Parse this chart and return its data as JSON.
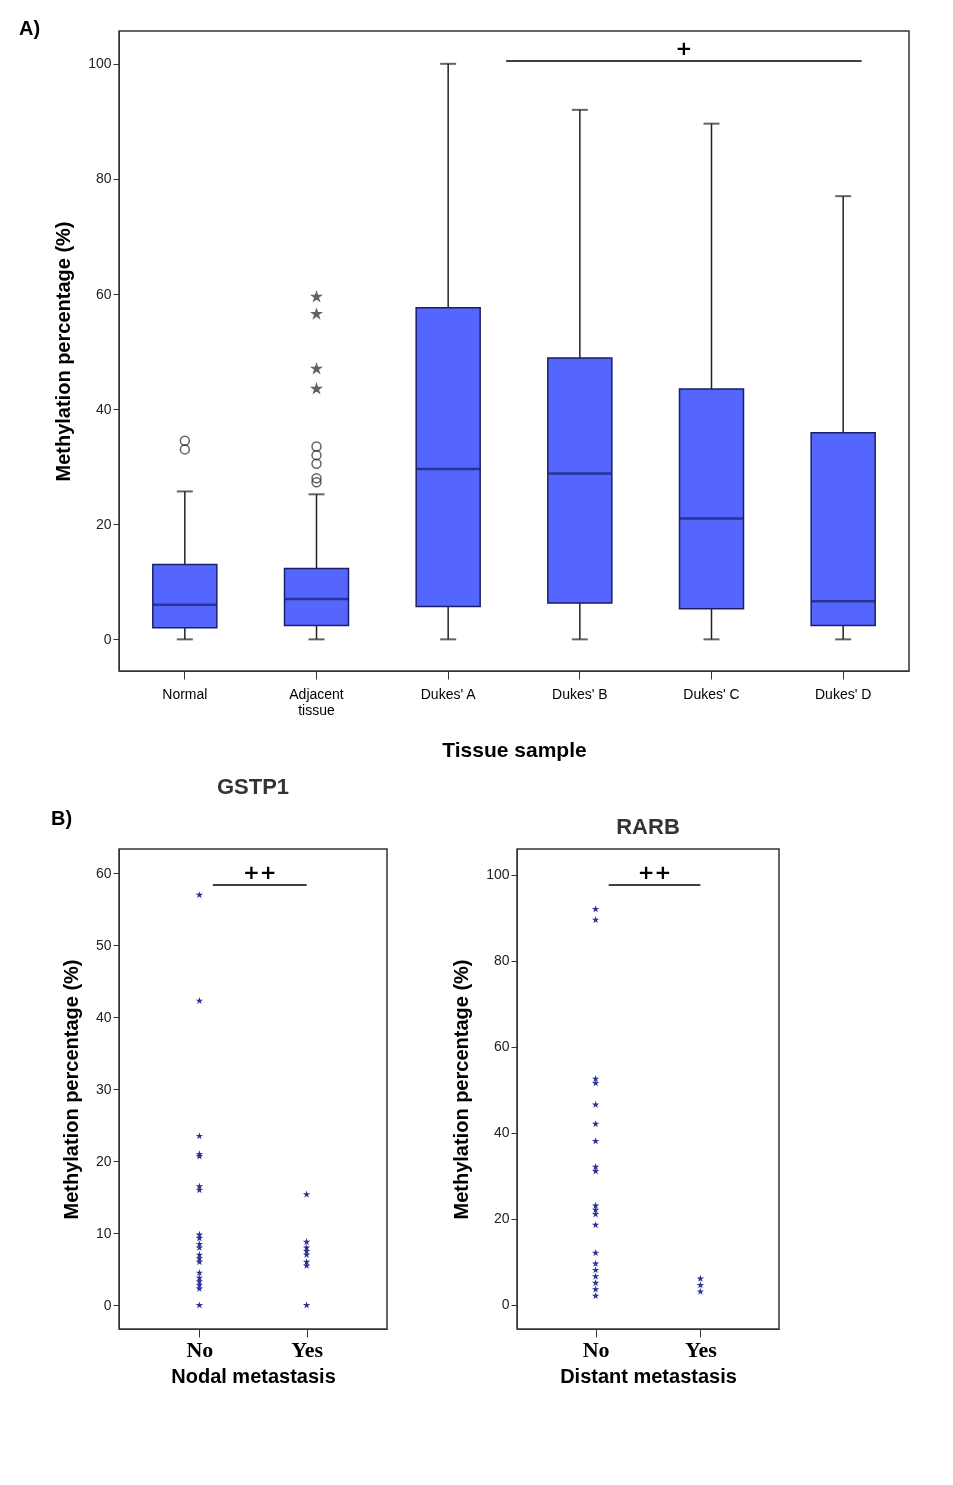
{
  "chart_data": [
    {
      "type": "box",
      "xlabel": "Tissue sample",
      "ylabel": "Methylation percentage (%)",
      "color": "#5566ff",
      "categories": [
        "Normal",
        "Adjacent tissue",
        "Dukes' A",
        "Dukes' B",
        "Dukes' C",
        "Dukes' D"
      ],
      "boxes": [
        {
          "low": 0,
          "q1": 2,
          "median": 6,
          "q3": 13,
          "high": 25.7,
          "outliers": [
            33,
            34.5
          ]
        },
        {
          "low": 0,
          "q1": 2.4,
          "median": 7,
          "q3": 12.3,
          "high": 25.2,
          "outliers": [
            27.3,
            28,
            30.5,
            32,
            33.5,
            43.5,
            47,
            56.5,
            59.5
          ]
        },
        {
          "low": 0,
          "q1": 5.7,
          "median": 29.6,
          "q3": 57.6,
          "high": 100
        },
        {
          "low": 0,
          "q1": 6.3,
          "median": 28.8,
          "q3": 48.9,
          "high": 92
        },
        {
          "low": 0,
          "q1": 5.3,
          "median": 21,
          "q3": 43.5,
          "high": 89.6
        },
        {
          "low": 0,
          "q1": 2.4,
          "median": 6.6,
          "q3": 35.9,
          "high": 77
        }
      ],
      "ylim": [
        -5.5,
        105.7
      ],
      "yticks": [
        0,
        20,
        40,
        60,
        80,
        100
      ],
      "annotations": [
        "A)",
        "+"
      ]
    },
    {
      "type": "scatter",
      "title": "GSTP1",
      "xlabel": "Nodal metastasis",
      "ylabel": "Methylation percentage (%)",
      "marker": "star",
      "categories": [
        "No",
        "Yes"
      ],
      "series": [
        {
          "color": "#2e3192",
          "x": [
            "No",
            "No",
            "No",
            "No",
            "No",
            "No",
            "No",
            "No",
            "No",
            "No",
            "No",
            "No",
            "No",
            "No",
            "No",
            "No",
            "No",
            "No",
            "No",
            "No",
            "Yes",
            "Yes",
            "Yes",
            "Yes",
            "Yes",
            "Yes",
            "Yes",
            "Yes"
          ],
          "values": [
            57,
            42.3,
            23.5,
            21,
            20.7,
            16.5,
            16,
            9.8,
            9.3,
            8.5,
            8,
            7,
            6.5,
            6,
            4.5,
            3.8,
            3.3,
            2.8,
            2.3,
            0,
            15.4,
            8.8,
            8,
            7.5,
            7,
            6,
            5.5,
            0
          ]
        }
      ],
      "ylim": [
        -3.3,
        63.4
      ],
      "yticks": [
        0,
        10,
        20,
        30,
        40,
        50,
        60
      ],
      "annotations": [
        "B)",
        "++"
      ]
    },
    {
      "type": "scatter",
      "title": "RARB",
      "xlabel": "Distant metastasis",
      "ylabel": "Methylation percentage (%)",
      "marker": "star",
      "categories": [
        "No",
        "Yes"
      ],
      "series": [
        {
          "color": "#2e3192",
          "x": [
            "No",
            "No",
            "No",
            "No",
            "No",
            "No",
            "No",
            "No",
            "No",
            "No",
            "No",
            "No",
            "No",
            "No",
            "No",
            "No",
            "No",
            "No",
            "No",
            "No",
            "Yes",
            "Yes",
            "Yes"
          ],
          "values": [
            92,
            89.5,
            52.5,
            51.5,
            46.5,
            42,
            38,
            32,
            31,
            23,
            22,
            21,
            18.5,
            12,
            9.5,
            8,
            6.5,
            5,
            3.5,
            2,
            6,
            4.5,
            3
          ]
        }
      ],
      "ylim": [
        -5.7,
        106
      ],
      "yticks": [
        0,
        20,
        40,
        60,
        80,
        100
      ],
      "annotations": [
        "++"
      ]
    }
  ]
}
